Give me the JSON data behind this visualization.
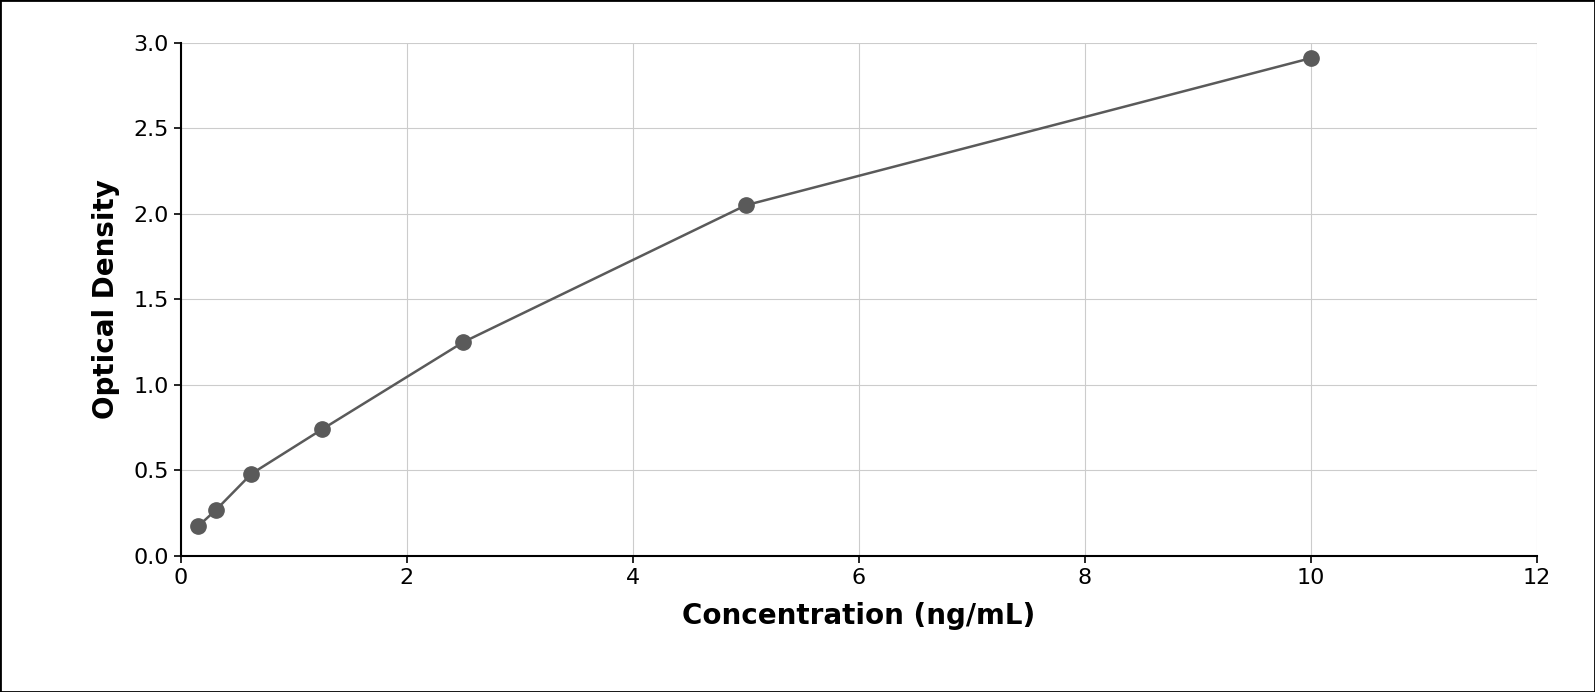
{
  "x_data": [
    0.156,
    0.313,
    0.625,
    1.25,
    2.5,
    5.0,
    10.0
  ],
  "y_data": [
    0.175,
    0.27,
    0.48,
    0.74,
    1.25,
    2.05,
    2.91
  ],
  "xlabel": "Concentration (ng/mL)",
  "ylabel": "Optical Density",
  "xlim": [
    0,
    12
  ],
  "ylim": [
    0,
    3
  ],
  "xticks": [
    0,
    2,
    4,
    6,
    8,
    10,
    12
  ],
  "yticks": [
    0,
    0.5,
    1,
    1.5,
    2,
    2.5,
    3
  ],
  "data_color": "#5a5a5a",
  "line_color": "#5a5a5a",
  "background_color": "#ffffff",
  "plot_bg_color": "#ffffff",
  "grid_color": "#cccccc",
  "xlabel_fontsize": 20,
  "ylabel_fontsize": 20,
  "tick_fontsize": 16,
  "xlabel_fontweight": "bold",
  "ylabel_fontweight": "bold",
  "marker_size": 11,
  "line_width": 1.8,
  "border_color": "#000000",
  "outer_border_color": "#000000"
}
